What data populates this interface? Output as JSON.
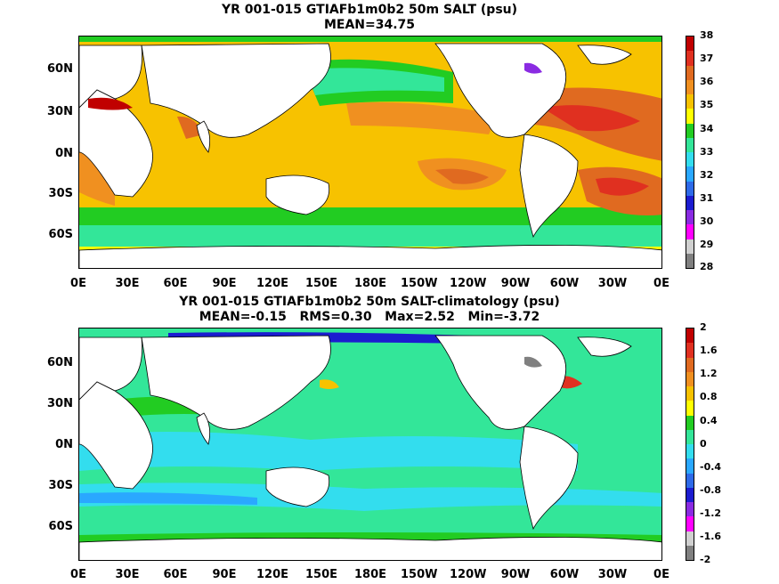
{
  "top": {
    "title": "YR 001-015 GTIAFb1m0b2 50m SALT (psu)",
    "subtitle": "MEAN=34.75",
    "y_ticks": [
      "60N",
      "30N",
      "0N",
      "30S",
      "60S"
    ],
    "x_ticks": [
      "0E",
      "30E",
      "60E",
      "90E",
      "120E",
      "150E",
      "180E",
      "150W",
      "120W",
      "90W",
      "60W",
      "30W",
      "0E"
    ],
    "colorbar": {
      "labels": [
        "38",
        "37",
        "36",
        "35",
        "34",
        "33",
        "32",
        "31",
        "30",
        "29",
        "28"
      ],
      "colors": [
        "#c00000",
        "#e03020",
        "#e06a20",
        "#f09020",
        "#f7c200",
        "#ffff00",
        "#22cc22",
        "#33e699",
        "#33ddee",
        "#2aa8ff",
        "#2e6ae8",
        "#1c1cd0",
        "#8a2be2",
        "#ff00ff",
        "#d0d0d0",
        "#808080"
      ]
    }
  },
  "bottom": {
    "title": "YR 001-015 GTIAFb1m0b2 50m SALT-climatology (psu)",
    "subtitle": "MEAN=-0.15   RMS=0.30   Max=2.52   Min=-3.72",
    "y_ticks": [
      "60N",
      "30N",
      "0N",
      "30S",
      "60S"
    ],
    "x_ticks": [
      "0E",
      "30E",
      "60E",
      "90E",
      "120E",
      "150E",
      "180E",
      "150W",
      "120W",
      "90W",
      "60W",
      "30W",
      "0E"
    ],
    "colorbar": {
      "labels": [
        "2",
        "1.6",
        "1.2",
        "0.8",
        "0.4",
        "0",
        "-0.4",
        "-0.8",
        "-1.2",
        "-1.6",
        "-2"
      ],
      "colors": [
        "#c00000",
        "#e03020",
        "#e06a20",
        "#f09020",
        "#f7c200",
        "#ffff00",
        "#22cc22",
        "#33e699",
        "#33ddee",
        "#2aa8ff",
        "#2e6ae8",
        "#1c1cd0",
        "#8a2be2",
        "#ff00ff",
        "#d0d0d0",
        "#808080"
      ]
    }
  }
}
